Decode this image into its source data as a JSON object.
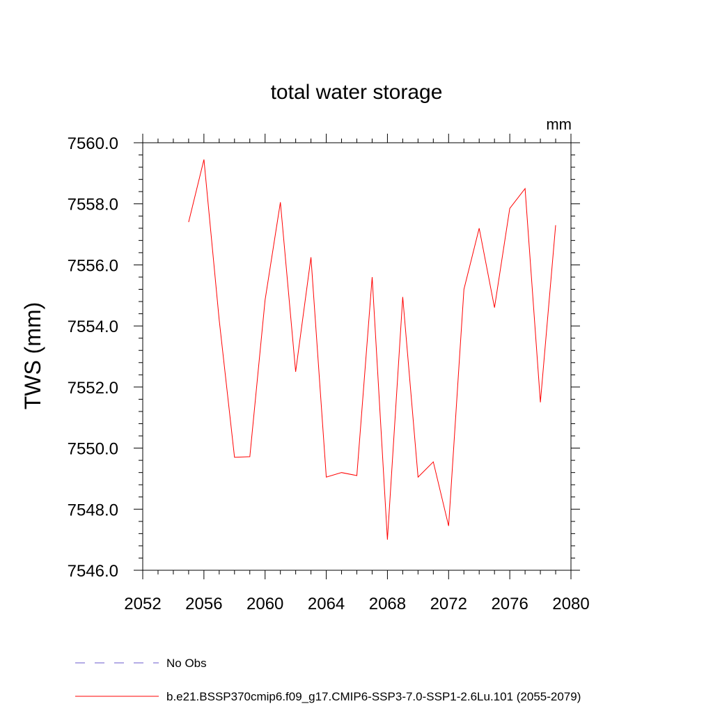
{
  "chart_data": {
    "type": "line",
    "title": "total water storage",
    "units_label": "mm",
    "ylabel": "TWS  (mm)",
    "xlabel": "",
    "xlim": [
      2052,
      2080
    ],
    "ylim": [
      7546.0,
      7560.0
    ],
    "x_ticks": [
      "2052",
      "2056",
      "2060",
      "2064",
      "2068",
      "2072",
      "2076",
      "2080"
    ],
    "y_ticks": [
      "7546.0",
      "7548.0",
      "7550.0",
      "7552.0",
      "7554.0",
      "7556.0",
      "7558.0",
      "7560.0"
    ],
    "series": [
      {
        "name": "b.e21.BSSP370cmip6.f09_g17.CMIP6-SSP3-7.0-SSP1-2.6Lu.101 (2055-2079)",
        "color": "#ff0000",
        "style": "solid",
        "x": [
          2055,
          2056,
          2057,
          2058,
          2059,
          2060,
          2061,
          2062,
          2063,
          2064,
          2065,
          2066,
          2067,
          2068,
          2069,
          2070,
          2071,
          2072,
          2073,
          2074,
          2075,
          2076,
          2077,
          2078,
          2079
        ],
        "y": [
          7557.4,
          7559.45,
          7554.2,
          7549.7,
          7549.72,
          7554.85,
          7558.05,
          7552.5,
          7556.25,
          7549.05,
          7549.2,
          7549.1,
          7555.6,
          7547.0,
          7554.95,
          7549.05,
          7549.55,
          7547.45,
          7555.2,
          7557.2,
          7554.6,
          7557.85,
          7558.5,
          7551.5,
          7557.3
        ]
      }
    ],
    "legend": [
      {
        "label": "No Obs",
        "color": "#6a5acd",
        "style": "dashed"
      },
      {
        "label": "b.e21.BSSP370cmip6.f09_g17.CMIP6-SSP3-7.0-SSP1-2.6Lu.101 (2055-2079)",
        "color": "#ff0000",
        "style": "solid"
      }
    ],
    "legend_placement": "bottom-left",
    "grid": false
  }
}
